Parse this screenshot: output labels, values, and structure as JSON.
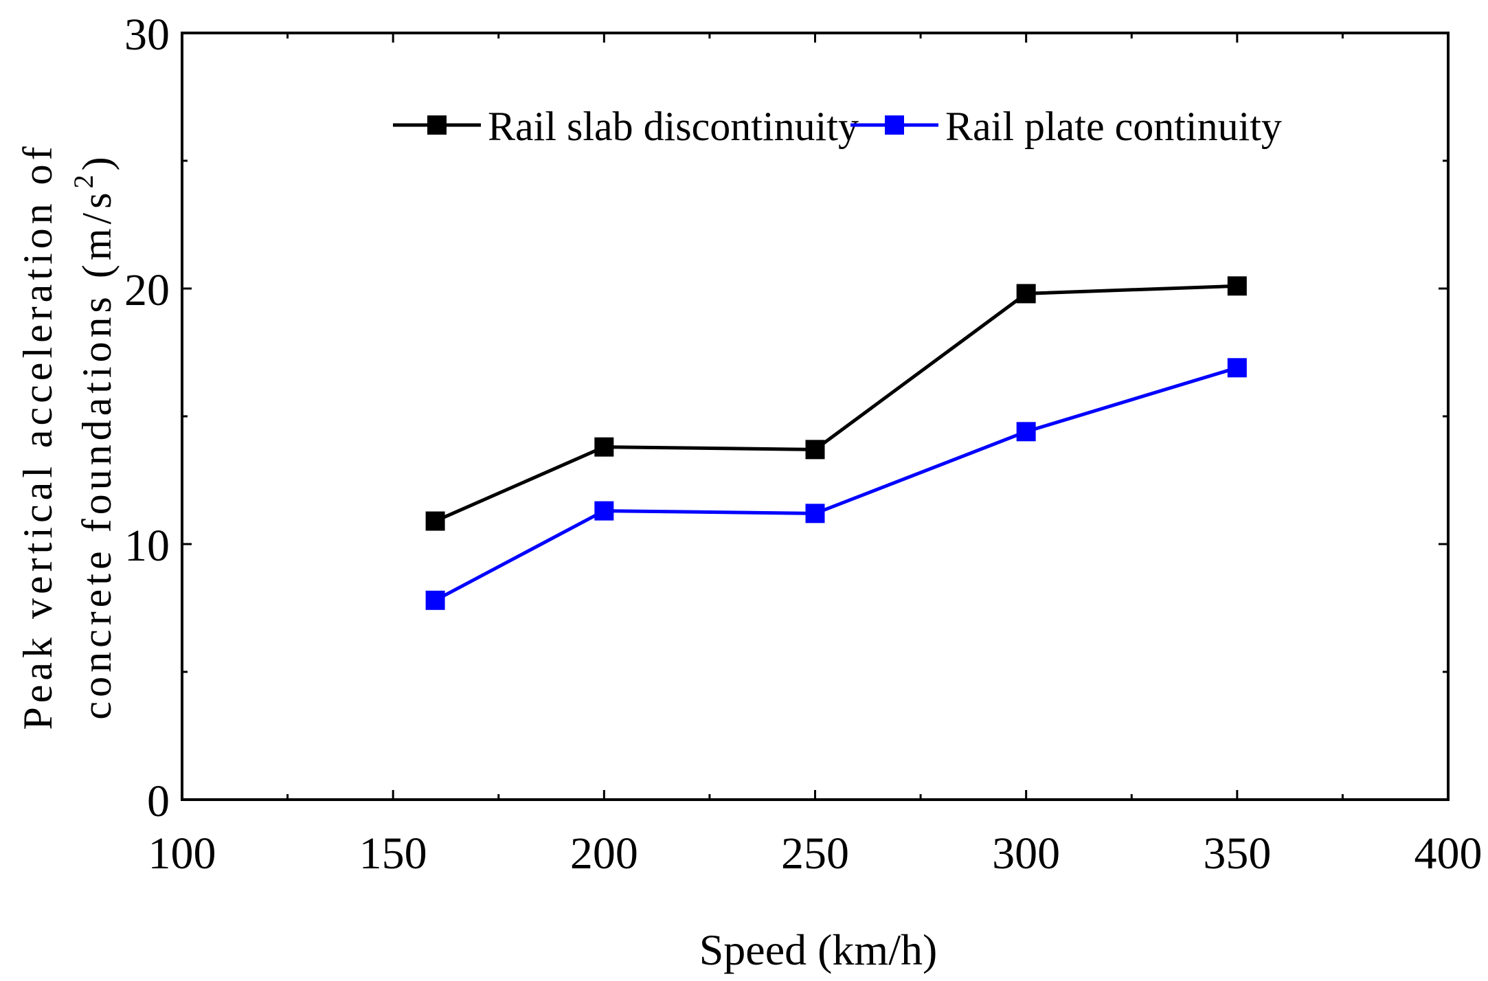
{
  "chart_data": {
    "type": "line",
    "title": "",
    "xlabel": "Speed (km/h)",
    "ylabel": {
      "line1": "Peak vertical acceleration of",
      "line2_prefix": "concrete foundations (m/s",
      "line2_superscript": "2",
      "line2_suffix": ")"
    },
    "xlim": [
      100,
      400
    ],
    "ylim": [
      0,
      30
    ],
    "x_ticks": [
      100,
      150,
      200,
      250,
      300,
      350,
      400
    ],
    "x_tick_labels": [
      "100",
      "150",
      "200",
      "250",
      "300",
      "350",
      "400"
    ],
    "x_minor_ticks": [
      125,
      175,
      225,
      275,
      325,
      375
    ],
    "y_ticks": [
      0,
      10,
      20,
      30
    ],
    "y_tick_labels": [
      "0",
      "10",
      "20",
      "30"
    ],
    "y_minor_ticks": [
      5,
      15,
      25
    ],
    "grid": false,
    "legend_position": "top-center",
    "x": [
      160,
      200,
      250,
      300,
      350
    ],
    "series": [
      {
        "name": "Rail slab discontinuity",
        "color": "#000000",
        "marker": "square",
        "values": [
          10.9,
          13.8,
          13.7,
          19.8,
          20.1
        ]
      },
      {
        "name": "Rail plate continuity",
        "color": "#0000ff",
        "marker": "square",
        "values": [
          7.8,
          11.3,
          11.2,
          14.4,
          16.9
        ]
      }
    ]
  }
}
